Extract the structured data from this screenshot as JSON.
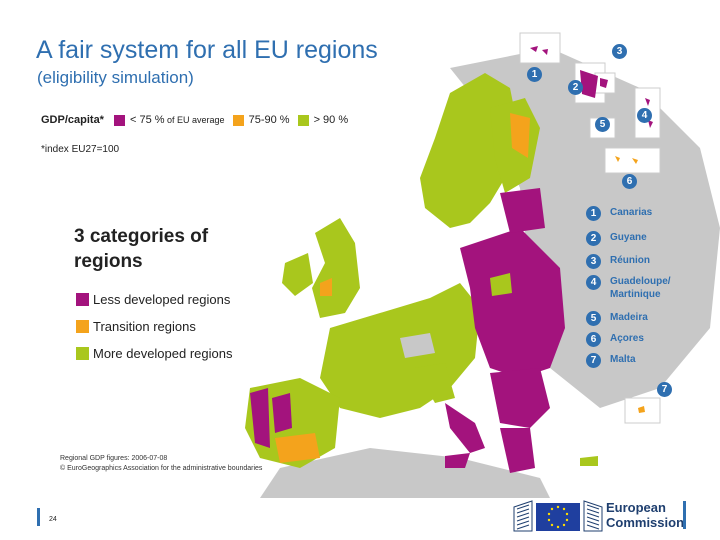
{
  "title": "A fair system for all EU regions",
  "subtitle": "(eligibility simulation)",
  "gdp_legend": {
    "label": "GDP/capita*",
    "items": [
      {
        "text": "< 75 %",
        "small": " of EU average",
        "color": "#a3137d"
      },
      {
        "text": "75-90 %",
        "small": "",
        "color": "#f4a31c"
      },
      {
        "text": "> 90 %",
        "small": "",
        "color": "#a9c71d"
      }
    ]
  },
  "index_note": "*index EU27=100",
  "categories": {
    "title": "3 categories of regions",
    "items": [
      {
        "label": "Less developed regions",
        "color": "#a3137d"
      },
      {
        "label": "Transition regions",
        "color": "#f4a31c"
      },
      {
        "label": "More developed regions",
        "color": "#a9c71d"
      }
    ]
  },
  "outermost": [
    {
      "num": "1",
      "name": "Canarias"
    },
    {
      "num": "2",
      "name": "Guyane"
    },
    {
      "num": "3",
      "name": "Réunion"
    },
    {
      "num": "4",
      "name": "Guadeloupe/ Martinique"
    },
    {
      "num": "5",
      "name": "Madeira"
    },
    {
      "num": "6",
      "name": "Açores"
    },
    {
      "num": "7",
      "name": "Malta"
    }
  ],
  "source_lines": [
    "Regional GDP figures: 2006-07-08",
    "© EuroGeographics Association for the administrative boundaries"
  ],
  "page_number": "24",
  "footer": {
    "logo_line1": "European",
    "logo_line2": "Commission"
  }
}
